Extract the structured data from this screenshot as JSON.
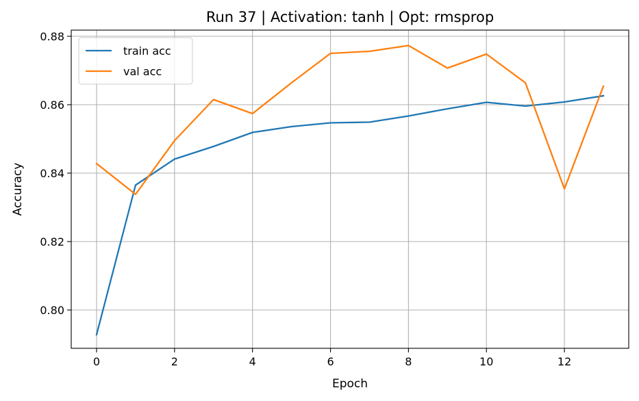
{
  "chart_data": {
    "type": "line",
    "title": "Run 37 | Activation: tanh | Opt: rmsprop",
    "xlabel": "Epoch",
    "ylabel": "Accuracy",
    "x": [
      0,
      1,
      2,
      3,
      4,
      5,
      6,
      7,
      8,
      9,
      10,
      11,
      12,
      13
    ],
    "xlim": [
      -0.65,
      13.65
    ],
    "ylim": [
      0.7888,
      0.8818
    ],
    "xticks": [
      0,
      2,
      4,
      6,
      8,
      10,
      12
    ],
    "xtick_labels": [
      "0",
      "2",
      "4",
      "6",
      "8",
      "10",
      "12"
    ],
    "yticks": [
      0.8,
      0.82,
      0.84,
      0.86,
      0.88
    ],
    "ytick_labels": [
      "0.80",
      "0.82",
      "0.84",
      "0.86",
      "0.88"
    ],
    "grid": true,
    "legend_position": "top-left",
    "series": [
      {
        "name": "train acc",
        "color": "#1f77b4",
        "values": [
          0.7928,
          0.8365,
          0.8441,
          0.8478,
          0.8519,
          0.8536,
          0.8547,
          0.8549,
          0.8567,
          0.8588,
          0.8607,
          0.8596,
          0.8608,
          0.8626
        ]
      },
      {
        "name": "val acc",
        "color": "#ff7f0e",
        "values": [
          0.8428,
          0.8338,
          0.8495,
          0.8615,
          0.8574,
          0.8664,
          0.875,
          0.8756,
          0.8773,
          0.8707,
          0.8748,
          0.8664,
          0.8354,
          0.8654
        ]
      }
    ]
  }
}
